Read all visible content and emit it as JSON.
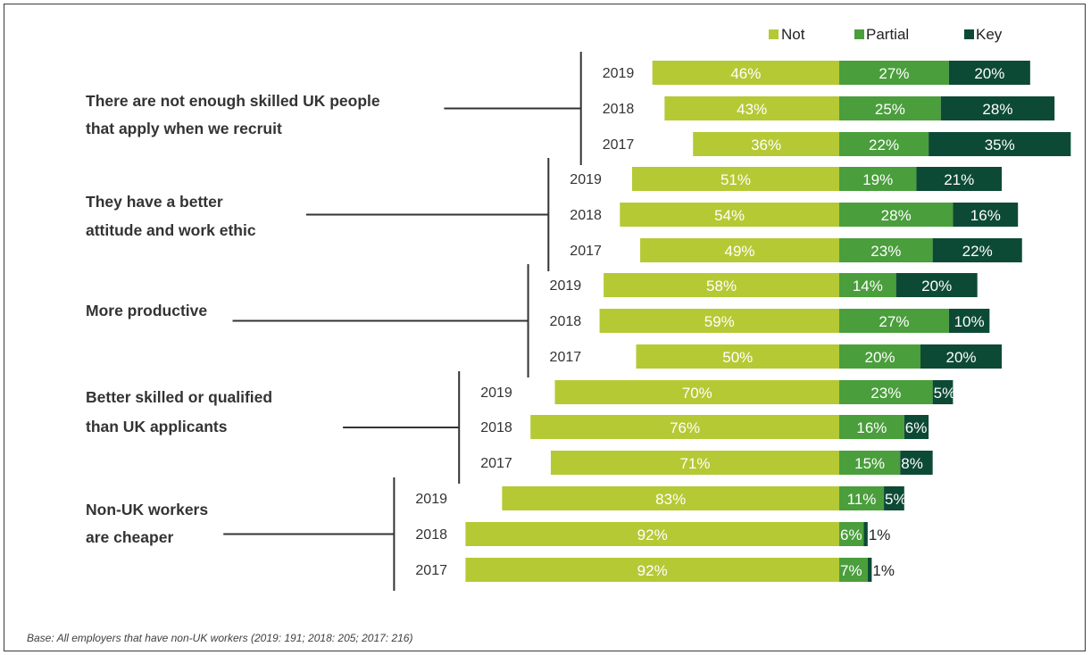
{
  "chart_data": {
    "type": "bar",
    "stacked": "diverging",
    "legend_position": "top-right",
    "legend": [
      "Not",
      "Partial",
      "Key"
    ],
    "colors": {
      "Not": "#b5c935",
      "Partial": "#4a9e3c",
      "Key": "#0d4a35"
    },
    "groups": [
      {
        "label_lines": [
          "There are not enough skilled UK people",
          "that apply when we recruit"
        ],
        "rows": [
          {
            "year": "2019",
            "not": 46,
            "partial": 27,
            "key": 20
          },
          {
            "year": "2018",
            "not": 43,
            "partial": 25,
            "key": 28
          },
          {
            "year": "2017",
            "not": 36,
            "partial": 22,
            "key": 35
          }
        ]
      },
      {
        "label_lines": [
          "They have a better",
          "attitude and work ethic"
        ],
        "rows": [
          {
            "year": "2019",
            "not": 51,
            "partial": 19,
            "key": 21
          },
          {
            "year": "2018",
            "not": 54,
            "partial": 28,
            "key": 16
          },
          {
            "year": "2017",
            "not": 49,
            "partial": 23,
            "key": 22
          }
        ]
      },
      {
        "label_lines": [
          "More productive"
        ],
        "rows": [
          {
            "year": "2019",
            "not": 58,
            "partial": 14,
            "key": 20
          },
          {
            "year": "2018",
            "not": 59,
            "partial": 27,
            "key": 10
          },
          {
            "year": "2017",
            "not": 50,
            "partial": 20,
            "key": 20
          }
        ]
      },
      {
        "label_lines": [
          "Better skilled or qualified",
          "than UK applicants"
        ],
        "rows": [
          {
            "year": "2019",
            "not": 70,
            "partial": 23,
            "key": 5
          },
          {
            "year": "2018",
            "not": 76,
            "partial": 16,
            "key": 6
          },
          {
            "year": "2017",
            "not": 71,
            "partial": 15,
            "key": 8
          }
        ]
      },
      {
        "label_lines": [
          "Non-UK workers",
          "are cheaper"
        ],
        "rows": [
          {
            "year": "2019",
            "not": 83,
            "partial": 11,
            "key": 5
          },
          {
            "year": "2018",
            "not": 92,
            "partial": 6,
            "key": 1
          },
          {
            "year": "2017",
            "not": 92,
            "partial": 7,
            "key": 1
          }
        ]
      }
    ]
  },
  "footnote": "Base: All employers that have non-UK workers (2019: 191; 2018: 205; 2017: 216)"
}
